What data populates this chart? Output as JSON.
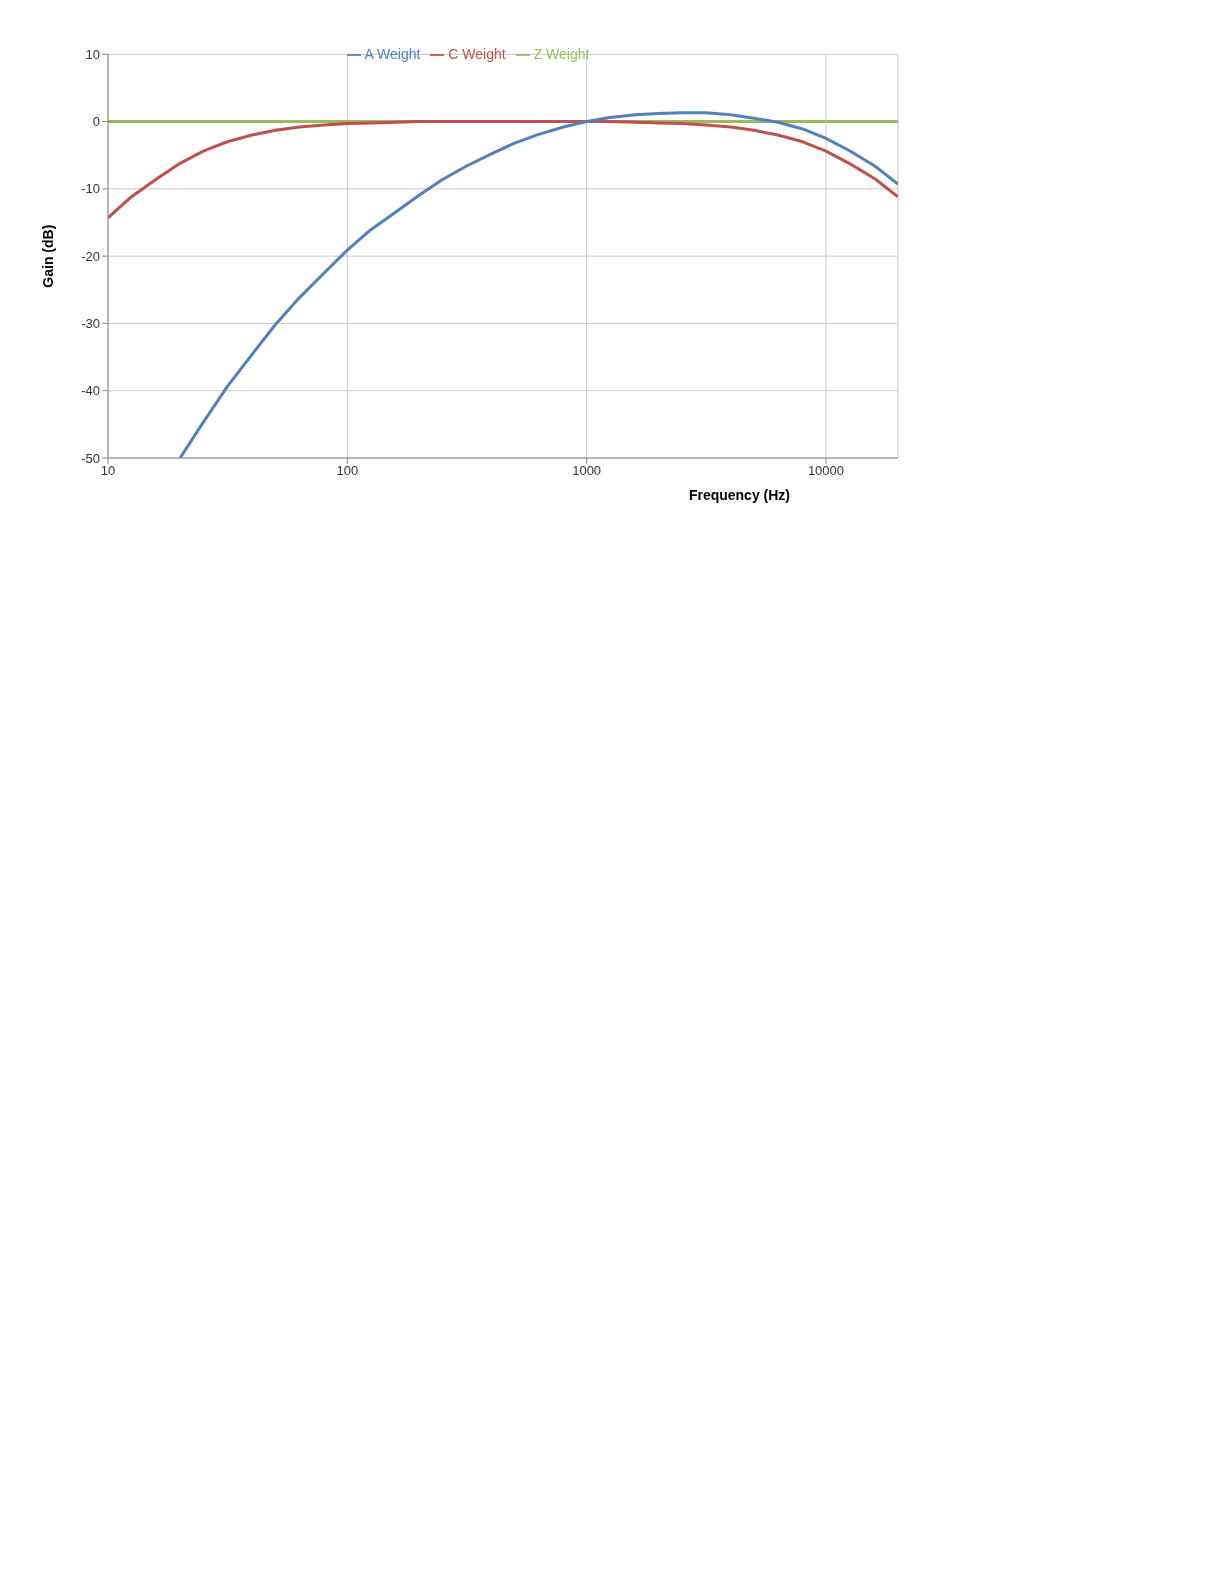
{
  "chart_data": {
    "type": "line",
    "xlabel": "Frequency (Hz)",
    "ylabel": "Gain (dB)",
    "log": "x",
    "xlim": [
      10,
      20000
    ],
    "xticks": [
      10,
      100,
      1000,
      10000
    ],
    "ylim": [
      -50,
      10
    ],
    "yticks": [
      -50,
      -40,
      -30,
      -20,
      -10,
      0,
      10
    ],
    "grid": true,
    "legend": "top",
    "marker": "none",
    "line_style": "solid",
    "series": [
      {
        "name": "Z Weight",
        "color": "#9bbb59",
        "x": [
          10,
          20000
        ],
        "values": [
          0,
          0
        ]
      },
      {
        "name": "C Weight",
        "color": "#c0504d",
        "x": [
          10,
          12.5,
          16,
          20,
          25,
          31.5,
          40,
          50,
          63,
          80,
          100,
          125,
          160,
          200,
          1000,
          1250,
          1600,
          2000,
          2500,
          3150,
          4000,
          5000,
          6300,
          8000,
          10000,
          12500,
          16000,
          20000
        ],
        "values": [
          -14.3,
          -11.2,
          -8.5,
          -6.2,
          -4.4,
          -3.0,
          -2.0,
          -1.3,
          -0.8,
          -0.5,
          -0.3,
          -0.2,
          -0.1,
          0,
          0,
          0,
          -0.1,
          -0.2,
          -0.3,
          -0.5,
          -0.8,
          -1.3,
          -2.0,
          -3.0,
          -4.4,
          -6.2,
          -8.5,
          -11.2
        ]
      },
      {
        "name": "A Weight",
        "color": "#4f81bd",
        "x": [
          20,
          25,
          31.5,
          40,
          50,
          63,
          80,
          100,
          125,
          160,
          200,
          250,
          315,
          400,
          500,
          630,
          800,
          1000,
          1250,
          1600,
          2000,
          2500,
          3150,
          4000,
          5000,
          6300,
          8000,
          10000,
          12500,
          16000,
          20000
        ],
        "values": [
          -50,
          -44.7,
          -39.4,
          -34.6,
          -30.2,
          -26.2,
          -22.5,
          -19.1,
          -16.1,
          -13.4,
          -10.9,
          -8.6,
          -6.6,
          -4.8,
          -3.2,
          -1.9,
          -0.8,
          0,
          0.6,
          1.0,
          1.2,
          1.3,
          1.3,
          1.0,
          0.5,
          -0.1,
          -1.1,
          -2.5,
          -4.3,
          -6.6,
          -9.3
        ]
      }
    ]
  }
}
